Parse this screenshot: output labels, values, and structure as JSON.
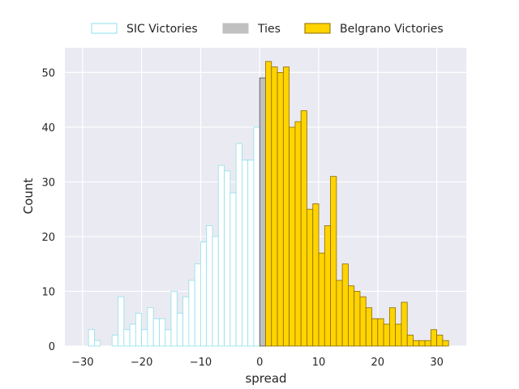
{
  "chart_data": {
    "type": "bar",
    "xlabel": "spread",
    "ylabel": "Count",
    "xlim": [
      -33,
      35
    ],
    "ylim": [
      0,
      54.5
    ],
    "xticks": [
      -30,
      -20,
      -10,
      0,
      10,
      20,
      30
    ],
    "yticks": [
      0,
      10,
      20,
      30,
      40,
      50
    ],
    "grid": true,
    "legend": "top",
    "series": [
      {
        "name": "SIC Victories",
        "face": "#ffffff",
        "edge": "#8ee0ec",
        "x": [
          -30,
          -29,
          -28,
          -27,
          -26,
          -25,
          -24,
          -23,
          -22,
          -21,
          -20,
          -19,
          -18,
          -17,
          -16,
          -15,
          -14,
          -13,
          -12,
          -11,
          -10,
          -9,
          -8,
          -7,
          -6,
          -5,
          -4,
          -3,
          -2,
          -1
        ],
        "values": [
          0,
          3,
          1,
          0,
          0,
          2,
          9,
          3,
          4,
          6,
          3,
          7,
          5,
          5,
          3,
          10,
          6,
          9,
          12,
          15,
          19,
          22,
          20,
          33,
          32,
          28,
          37,
          34,
          34,
          40
        ]
      },
      {
        "name": "Ties",
        "face": "#c0c0c0",
        "edge": "#4d4d4d",
        "x": [
          0
        ],
        "values": [
          49
        ]
      },
      {
        "name": "Belgrano Victories",
        "face": "#ffd400",
        "edge": "#8a6a00",
        "x": [
          1,
          2,
          3,
          4,
          5,
          6,
          7,
          8,
          9,
          10,
          11,
          12,
          13,
          14,
          15,
          16,
          17,
          18,
          19,
          20,
          21,
          22,
          23,
          24,
          25,
          26,
          27,
          28,
          29,
          30,
          31
        ],
        "values": [
          52,
          51,
          50,
          51,
          40,
          41,
          43,
          25,
          26,
          17,
          22,
          31,
          12,
          15,
          11,
          10,
          9,
          7,
          5,
          5,
          4,
          7,
          4,
          8,
          2,
          1,
          1,
          1,
          3,
          2,
          1
        ]
      }
    ]
  }
}
